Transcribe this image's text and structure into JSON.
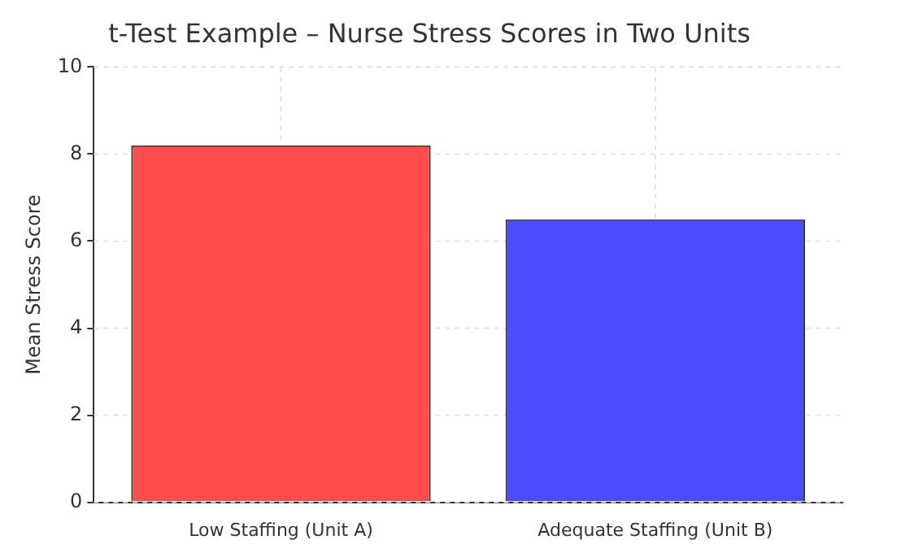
{
  "chart_data": {
    "type": "bar",
    "title": "t-Test Example – Nurse Stress Scores in Two Units",
    "ylabel": "Mean Stress Score",
    "categories": [
      "Low Staffing (Unit A)",
      "Adequate Staffing (Unit B)"
    ],
    "values": [
      8.2,
      6.5
    ],
    "colors": [
      "#ff4c4c",
      "#4c4cff"
    ],
    "ylim": [
      0,
      10
    ],
    "yticks": [
      0,
      2,
      4,
      6,
      8,
      10
    ],
    "grid": true
  }
}
